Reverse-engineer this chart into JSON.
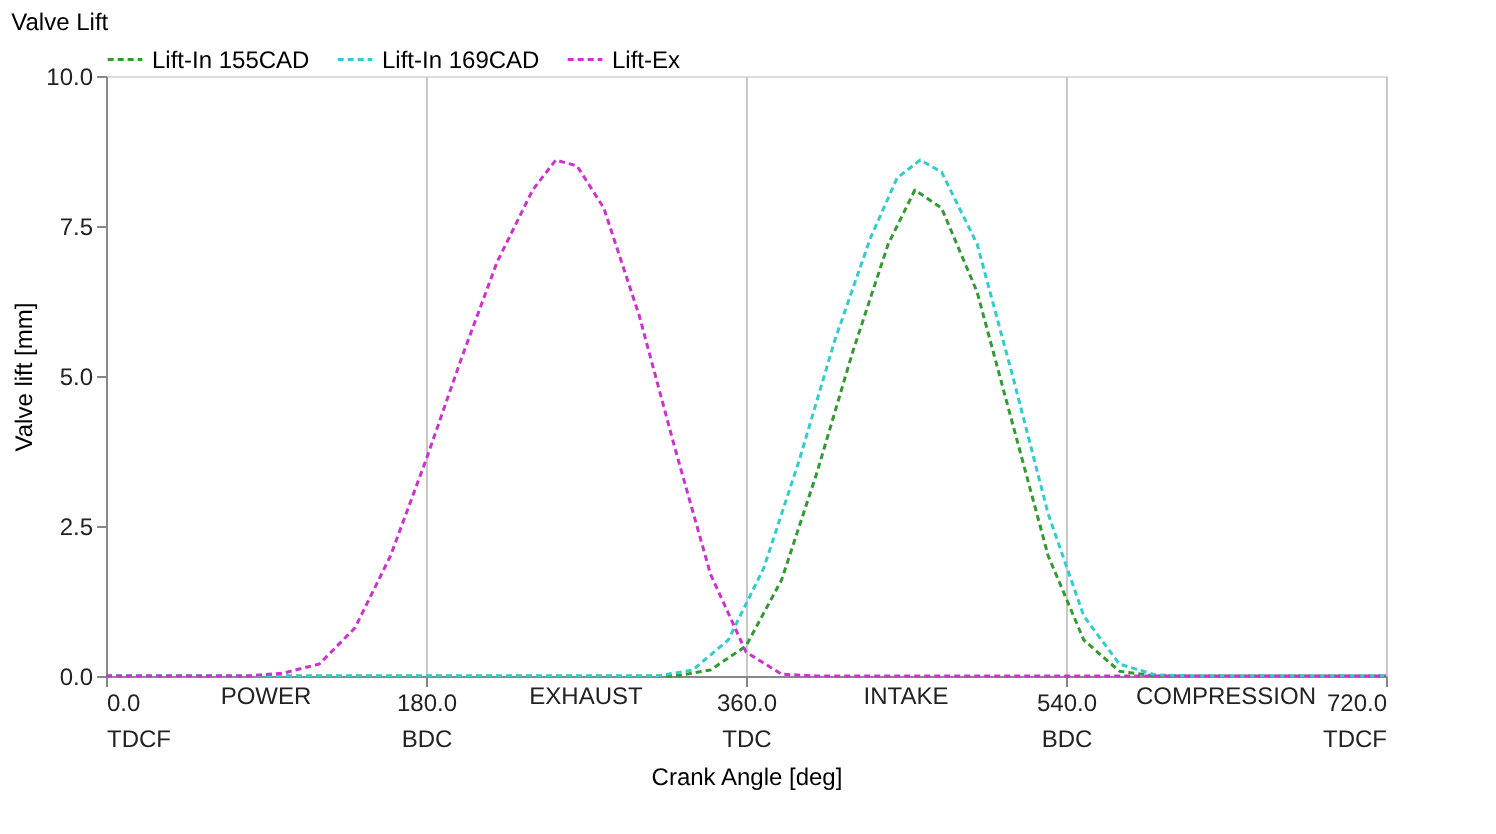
{
  "chart_data": {
    "type": "line",
    "title": "Valve Lift",
    "xlabel": "Crank Angle [deg]",
    "ylabel": "Valve lift [mm]",
    "xlim": [
      0,
      720
    ],
    "xticks": [
      {
        "value": 0,
        "label": "0.0\nTDCF"
      },
      {
        "value": 180,
        "label": "180.0\nBDC"
      },
      {
        "value": 360,
        "label": "360.0\nTDC"
      },
      {
        "value": 540,
        "label": "540.0\nBDC"
      },
      {
        "value": 720,
        "label": "720.0\nTDCF"
      }
    ],
    "ylim": [
      0,
      10
    ],
    "yticks": [
      {
        "value": 0,
        "label": "0.0"
      },
      {
        "value": 2.5,
        "label": "2.5"
      },
      {
        "value": 5,
        "label": "5.0"
      },
      {
        "value": 7.5,
        "label": "7.5"
      },
      {
        "value": 10,
        "label": "10.0"
      }
    ],
    "annotations": [
      "POWER",
      "EXHAUST",
      "INTAKE",
      "COMPRESSION"
    ],
    "grid": "x",
    "legend": "top",
    "line_style": "dashed",
    "marker": "none",
    "series": [
      {
        "name": "Lift-In 155CAD",
        "color": "#339933",
        "x": [
          0,
          320,
          340,
          360,
          380,
          400,
          420,
          440,
          455,
          470,
          490,
          510,
          530,
          550,
          570,
          590,
          720
        ],
        "values": [
          0,
          0,
          0.1,
          0.5,
          1.6,
          3.4,
          5.4,
          7.2,
          8.1,
          7.8,
          6.4,
          4.2,
          2.0,
          0.6,
          0.08,
          0,
          0
        ]
      },
      {
        "name": "Lift-In 169CAD",
        "color": "#33cccc",
        "x": [
          0,
          310,
          330,
          350,
          370,
          390,
          410,
          430,
          445,
          458,
          470,
          490,
          510,
          530,
          550,
          570,
          590,
          610,
          720
        ],
        "values": [
          0,
          0,
          0.1,
          0.6,
          1.8,
          3.6,
          5.6,
          7.3,
          8.3,
          8.6,
          8.4,
          7.2,
          5.0,
          2.7,
          1.0,
          0.2,
          0.02,
          0,
          0
        ]
      },
      {
        "name": "Lift-Ex",
        "color": "#cc33cc",
        "x": [
          0,
          80,
          100,
          120,
          140,
          160,
          180,
          200,
          220,
          240,
          253,
          265,
          280,
          300,
          320,
          340,
          360,
          380,
          400,
          720
        ],
        "values": [
          0,
          0,
          0.05,
          0.2,
          0.8,
          2.0,
          3.6,
          5.3,
          6.9,
          8.1,
          8.6,
          8.5,
          7.8,
          6.0,
          3.8,
          1.7,
          0.4,
          0.03,
          0,
          0
        ]
      }
    ]
  }
}
